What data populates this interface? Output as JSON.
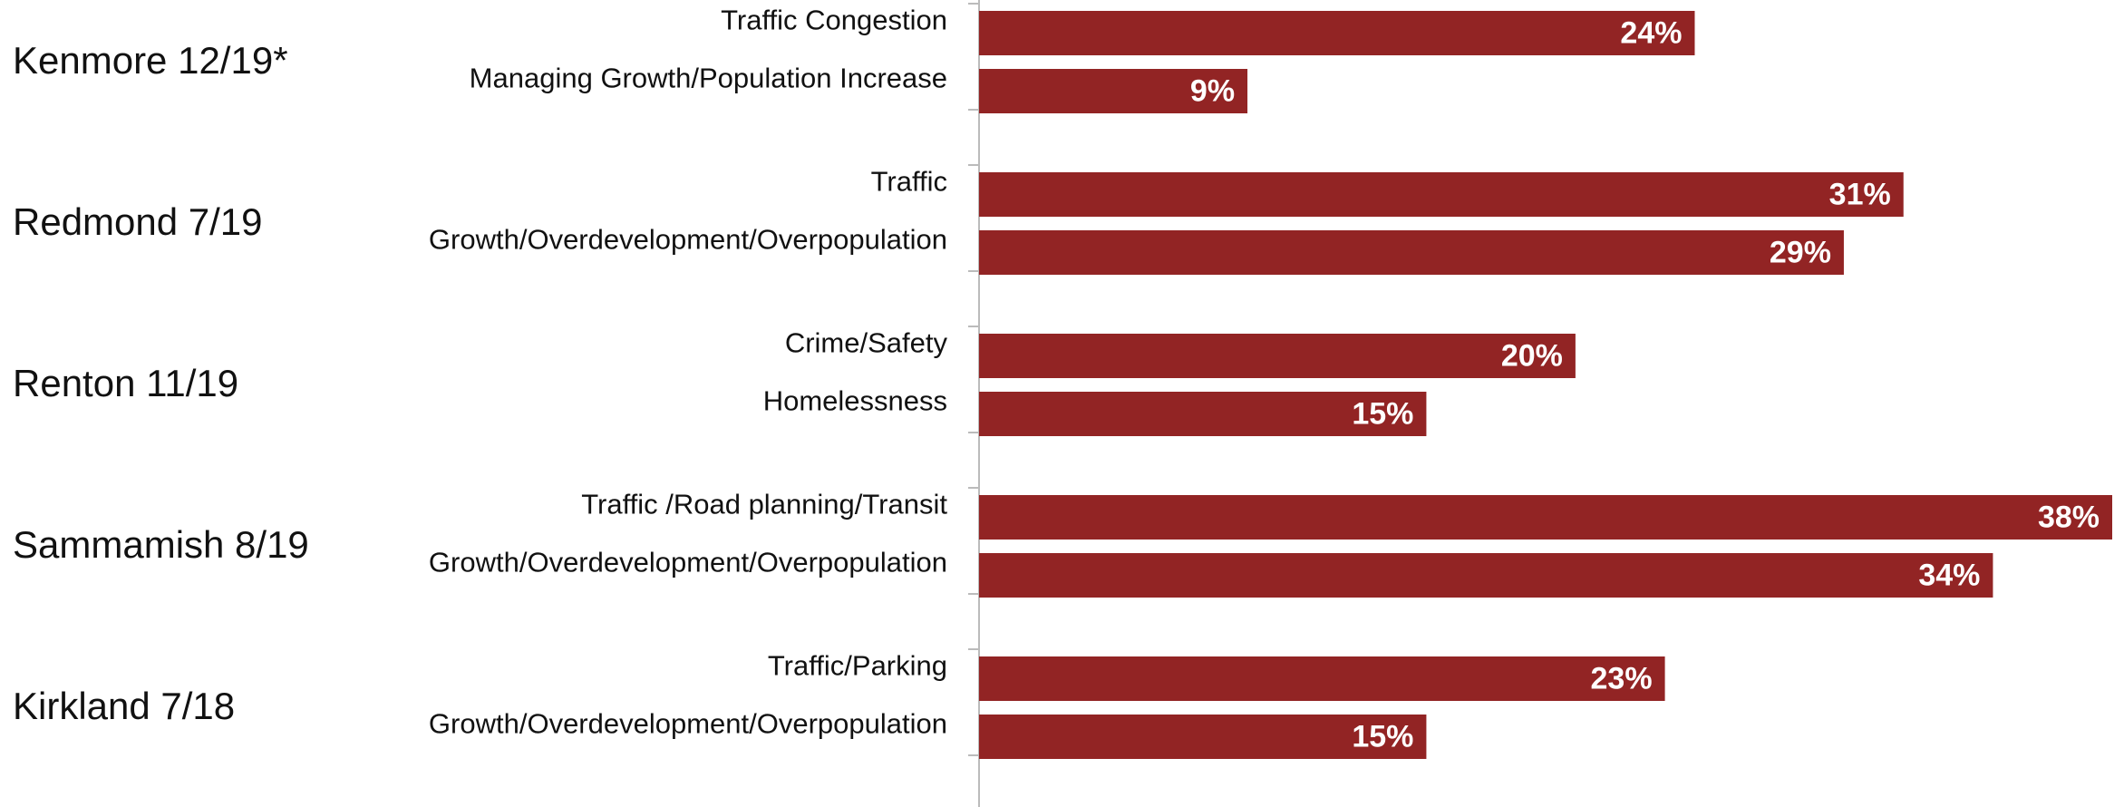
{
  "chart_data": {
    "type": "bar",
    "orientation": "horizontal",
    "color": "#922424",
    "xlim": [
      0,
      38
    ],
    "groups": [
      {
        "label": "Kenmore 12/19*",
        "categories": [
          "Traffic Congestion",
          "Managing Growth/Population Increase"
        ],
        "values": [
          24,
          9
        ],
        "value_labels": [
          "24%",
          "9%"
        ]
      },
      {
        "label": "Redmond 7/19",
        "categories": [
          "Traffic",
          "Growth/Overdevelopment/Overpopulation"
        ],
        "values": [
          31,
          29
        ],
        "value_labels": [
          "31%",
          "29%"
        ]
      },
      {
        "label": "Renton 11/19",
        "categories": [
          "Crime/Safety",
          "Homelessness"
        ],
        "values": [
          20,
          15
        ],
        "value_labels": [
          "20%",
          "15%"
        ]
      },
      {
        "label": "Sammamish 8/19",
        "categories": [
          "Traffic /Road planning/Transit",
          "Growth/Overdevelopment/Overpopulation"
        ],
        "values": [
          38,
          34
        ],
        "value_labels": [
          "38%",
          "34%"
        ]
      },
      {
        "label": "Kirkland 7/18",
        "categories": [
          "Traffic/Parking",
          "Growth/Overdevelopment/Overpopulation"
        ],
        "values": [
          23,
          15
        ],
        "value_labels": [
          "23%",
          "15%"
        ]
      }
    ]
  }
}
